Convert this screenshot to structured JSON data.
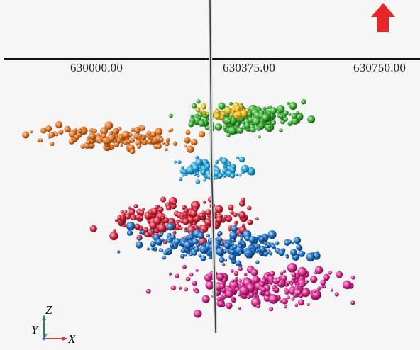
{
  "viewer": {
    "x_ticks": [
      "630000.00",
      "630375.00",
      "630750.00"
    ],
    "north_arrow_color": "#e8262a",
    "triad": {
      "z": "Z",
      "y": "Y",
      "x": "X"
    }
  },
  "clusters": [
    {
      "name": "orange",
      "color": "#e0762a"
    },
    {
      "name": "green",
      "color": "#3fae3a"
    },
    {
      "name": "yellow",
      "color": "#e8b820"
    },
    {
      "name": "cyan",
      "color": "#26a6d8"
    },
    {
      "name": "red",
      "color": "#d2283c"
    },
    {
      "name": "blue",
      "color": "#1f6fc0"
    },
    {
      "name": "magenta",
      "color": "#d42a8c"
    }
  ]
}
